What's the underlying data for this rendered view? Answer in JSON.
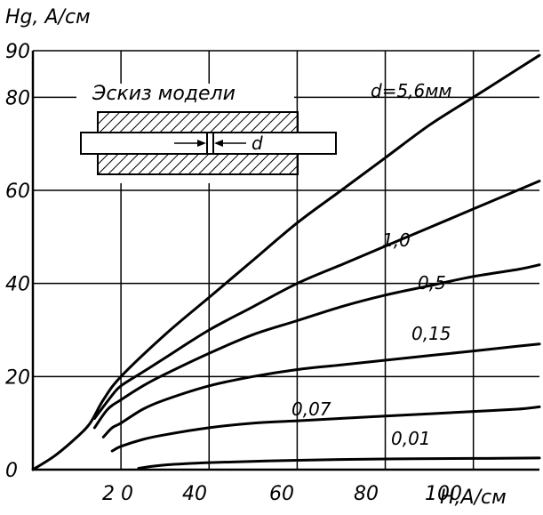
{
  "chart_data": {
    "type": "line",
    "ylabel": "Hg, A/см",
    "xlabel": "H,A/см",
    "xlim": [
      0,
      115
    ],
    "ylim": [
      0,
      90
    ],
    "x_ticks": [
      20,
      40,
      60,
      80,
      100
    ],
    "x_tick_labels": [
      "2 0",
      "40",
      "60",
      "80",
      "100"
    ],
    "y_ticks": [
      0,
      20,
      40,
      60,
      80,
      90
    ],
    "y_tick_labels": [
      "0",
      "20",
      "40",
      "60",
      "80",
      "90"
    ],
    "grid": true,
    "inset": {
      "title": "Эскиз модели",
      "gap_label": "d"
    },
    "series": [
      {
        "name": "d=5,6мм",
        "x": [
          0,
          5,
          10,
          13,
          16,
          20,
          30,
          40,
          50,
          60,
          70,
          80,
          90,
          100,
          110,
          115
        ],
        "y": [
          0,
          3,
          7,
          10,
          15,
          20,
          29,
          37,
          45,
          53,
          60,
          67,
          74,
          80,
          86,
          89
        ]
      },
      {
        "name": "1,0",
        "x": [
          14,
          18,
          20,
          25,
          30,
          40,
          50,
          60,
          70,
          80,
          90,
          100,
          110,
          115
        ],
        "y": [
          11,
          16,
          18,
          21,
          24,
          30,
          35,
          40,
          44,
          48,
          52,
          56,
          60,
          62
        ]
      },
      {
        "name": "0,5",
        "x": [
          14,
          17,
          20,
          25,
          30,
          40,
          50,
          60,
          70,
          80,
          90,
          100,
          110,
          115
        ],
        "y": [
          9,
          13,
          15,
          18,
          20.5,
          25,
          29,
          32,
          35,
          37.5,
          39.5,
          41.5,
          43,
          44
        ]
      },
      {
        "name": "0,15",
        "x": [
          16,
          18,
          20,
          25,
          30,
          40,
          50,
          60,
          70,
          80,
          90,
          100,
          110,
          115
        ],
        "y": [
          7,
          9,
          10,
          13,
          15,
          18,
          20,
          21.5,
          22.5,
          23.5,
          24.5,
          25.5,
          26.5,
          27
        ]
      },
      {
        "name": "0,07",
        "x": [
          18,
          20,
          25,
          30,
          40,
          50,
          60,
          70,
          80,
          90,
          100,
          110,
          115
        ],
        "y": [
          4,
          5,
          6.5,
          7.5,
          9,
          10,
          10.5,
          11,
          11.5,
          12,
          12.5,
          13,
          13.5
        ]
      },
      {
        "name": "0,01",
        "x": [
          24,
          30,
          40,
          60,
          80,
          100,
          115
        ],
        "y": [
          0.3,
          1,
          1.5,
          2,
          2.3,
          2.4,
          2.5
        ]
      }
    ],
    "curve_labels": [
      "d=5,6мм",
      "1,0",
      "0,5",
      "0,15",
      "0,07",
      "0,01"
    ]
  }
}
